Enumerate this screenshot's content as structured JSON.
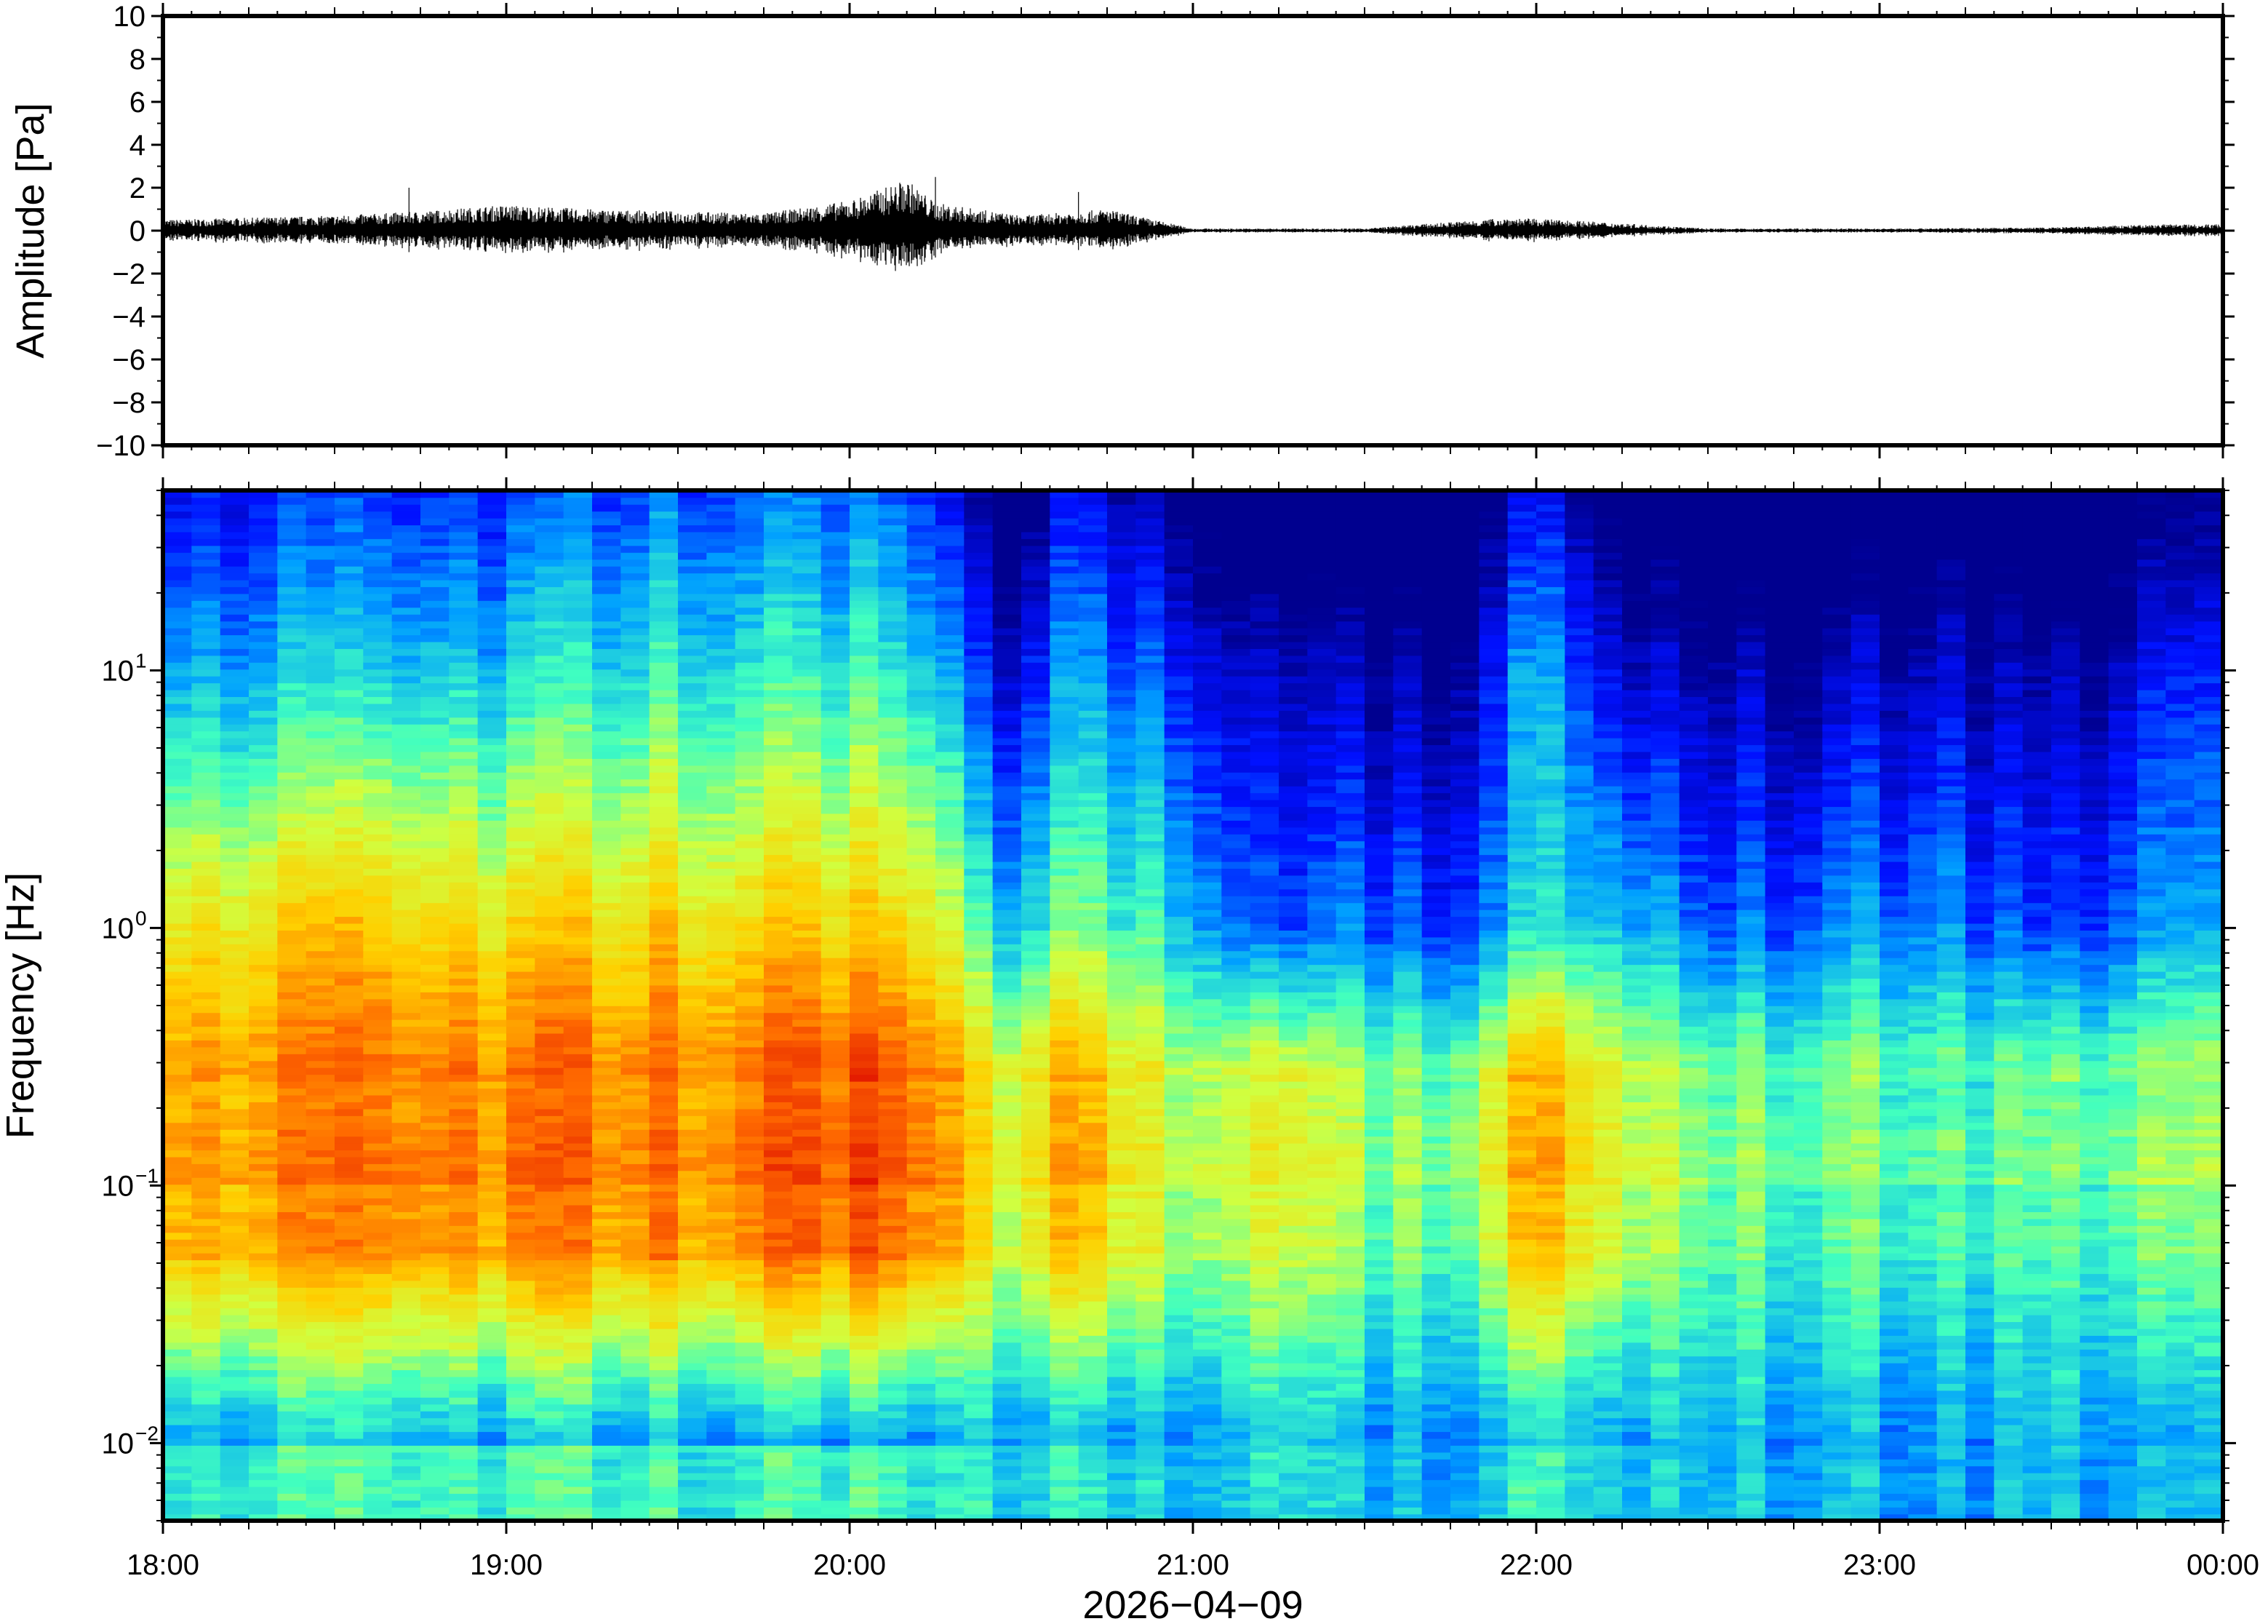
{
  "chart_data": [
    {
      "type": "line",
      "panel": "waveform",
      "ylabel": "Amplitude [Pa]",
      "xlabel": "",
      "ylim": [
        -10,
        10
      ],
      "yticks": [
        10,
        8,
        6,
        4,
        2,
        0,
        -2,
        -4,
        -6,
        -8,
        -10
      ],
      "ytick_labels": [
        "10",
        "8",
        "6",
        "4",
        "2",
        "0",
        "−2",
        "−4",
        "−6",
        "−8",
        "−10"
      ],
      "xlim": [
        "18:00",
        "00:00"
      ],
      "grid": false,
      "series": [
        {
          "x": [
            "18:00",
            "18:15",
            "18:30",
            "18:45",
            "19:00",
            "19:15",
            "19:30",
            "19:45",
            "20:00",
            "20:10",
            "20:15",
            "20:30",
            "20:45",
            "21:00",
            "21:30",
            "21:55",
            "22:05",
            "22:30",
            "23:00",
            "23:30",
            "23:50",
            "00:00"
          ],
          "y": [
            0.5,
            0.6,
            0.7,
            0.9,
            1.2,
            1.0,
            0.9,
            0.8,
            1.4,
            2.4,
            1.3,
            0.7,
            1.0,
            0.1,
            0.1,
            0.6,
            0.5,
            0.1,
            0.1,
            0.15,
            0.3,
            0.3
          ],
          "peak_spikes": [
            {
              "x": "18:43",
              "y": 2.0
            },
            {
              "x": "20:15",
              "y": 2.5
            },
            {
              "x": "20:40",
              "y": 1.8
            }
          ]
        }
      ],
      "color": "#000000"
    },
    {
      "type": "heatmap",
      "panel": "spectrogram",
      "ylabel": "Frequency [Hz]",
      "xlabel": "2026−04−09",
      "yscale": "log",
      "ylim": [
        0.005,
        50
      ],
      "yticks": [
        0.01,
        0.1,
        1,
        10
      ],
      "ytick_labels": [
        {
          "base": "10",
          "exp": "−2"
        },
        {
          "base": "10",
          "exp": "−1"
        },
        {
          "base": "10",
          "exp": "0"
        },
        {
          "base": "10",
          "exp": "1"
        }
      ],
      "x_tick_labels": [
        "18:00",
        "19:00",
        "20:00",
        "21:00",
        "22:00",
        "23:00",
        "00:00"
      ],
      "colormap": "jet",
      "colormap_stops": [
        "#00008f",
        "#0010ff",
        "#00a0ff",
        "#40ffc0",
        "#d0ff40",
        "#ffd000",
        "#ff6a00",
        "#e01000"
      ],
      "x": [
        "18:00",
        "18:30",
        "19:00",
        "19:30",
        "20:00",
        "20:15",
        "20:25",
        "20:40",
        "20:55",
        "21:15",
        "21:30",
        "21:45",
        "22:00",
        "22:15",
        "22:30",
        "22:50",
        "23:10",
        "23:30",
        "23:50"
      ],
      "intensity_at_0.1Hz": [
        0.75,
        0.78,
        0.8,
        0.8,
        0.88,
        0.85,
        0.55,
        0.75,
        0.55,
        0.55,
        0.5,
        0.48,
        0.72,
        0.58,
        0.45,
        0.45,
        0.45,
        0.42,
        0.5
      ],
      "intensity_at_1Hz": [
        0.65,
        0.7,
        0.68,
        0.7,
        0.72,
        0.7,
        0.3,
        0.5,
        0.4,
        0.15,
        0.25,
        0.2,
        0.35,
        0.35,
        0.2,
        0.25,
        0.3,
        0.15,
        0.3
      ],
      "intensity_at_10Hz": [
        0.3,
        0.32,
        0.35,
        0.4,
        0.42,
        0.4,
        0.05,
        0.3,
        0.2,
        0.0,
        0.05,
        0.02,
        0.28,
        0.1,
        0.02,
        0.03,
        0.1,
        0.0,
        0.15
      ],
      "grid": false
    }
  ]
}
